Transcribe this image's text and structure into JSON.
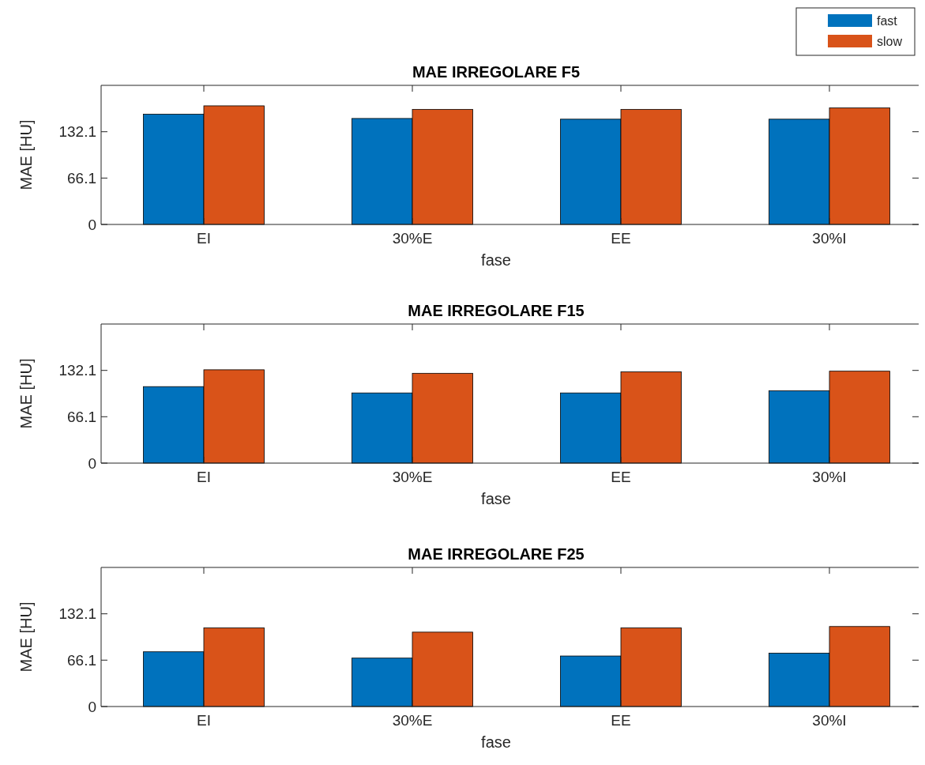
{
  "chart_data": [
    {
      "type": "bar",
      "title": "MAE IRREGOLARE F5",
      "xlabel": "fase",
      "ylabel": "MAE [HU]",
      "categories": [
        "EI",
        "30%E",
        "EE",
        "30%I"
      ],
      "series": [
        {
          "name": "fast",
          "color": "#0072bd",
          "values": [
            157,
            151,
            150,
            150
          ]
        },
        {
          "name": "slow",
          "color": "#d95319",
          "values": [
            169,
            164,
            164,
            166
          ]
        }
      ],
      "ylim": [
        0,
        198.2
      ],
      "yticks": [
        0,
        66.1,
        132.1
      ],
      "legend": "top right",
      "grid": false
    },
    {
      "type": "bar",
      "title": "MAE IRREGOLARE F15",
      "xlabel": "fase",
      "ylabel": "MAE [HU]",
      "categories": [
        "EI",
        "30%E",
        "EE",
        "30%I"
      ],
      "series": [
        {
          "color": "#0072bd",
          "values": [
            109,
            100,
            100,
            103
          ]
        },
        {
          "color": "#d95319",
          "values": [
            133,
            128,
            130,
            131
          ]
        }
      ],
      "ylim": [
        0,
        198.2
      ],
      "yticks": [
        0,
        66.1,
        132.1
      ],
      "grid": false
    },
    {
      "type": "bar",
      "title": "MAE IRREGOLARE F25",
      "xlabel": "fase",
      "ylabel": "MAE [HU]",
      "categories": [
        "EI",
        "30%E",
        "EE",
        "30%I"
      ],
      "series": [
        {
          "color": "#0072bd",
          "values": [
            78,
            69,
            72,
            76
          ]
        },
        {
          "color": "#d95319",
          "values": [
            112,
            106,
            112,
            114
          ]
        }
      ],
      "ylim": [
        0,
        198.2
      ],
      "yticks": [
        0,
        66.1,
        132.1
      ],
      "grid": false
    }
  ]
}
